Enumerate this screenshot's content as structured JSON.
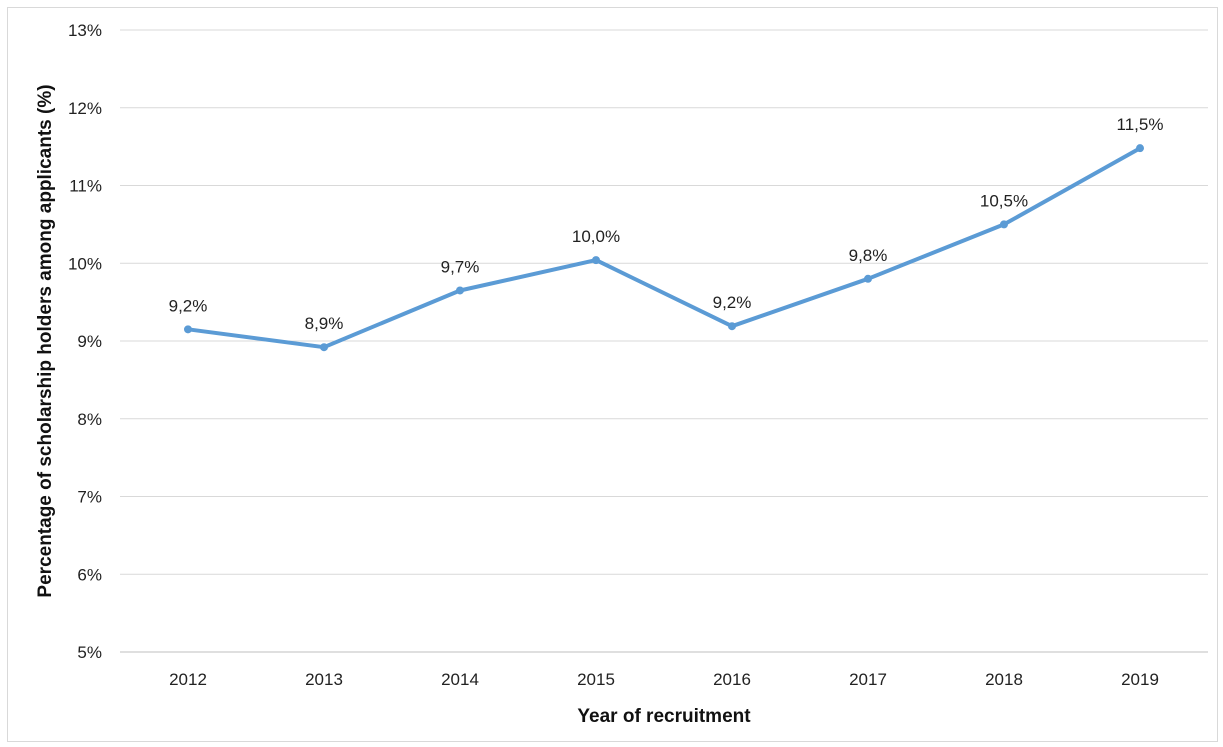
{
  "chart_data": {
    "type": "line",
    "title": "",
    "xlabel": "Year of recruitment",
    "ylabel": "Percentage of scholarship holders among applicants (%)",
    "categories": [
      "2012",
      "2013",
      "2014",
      "2015",
      "2016",
      "2017",
      "2018",
      "2019"
    ],
    "series": [
      {
        "values": [
          9.15,
          8.92,
          9.65,
          10.04,
          9.19,
          9.8,
          10.5,
          11.48
        ],
        "data_labels": [
          "9,2%",
          "8,9%",
          "9,7%",
          "10,0%",
          "9,2%",
          "9,8%",
          "10,5%",
          "11,5%"
        ],
        "color": "#5b9bd5"
      }
    ],
    "ylim": [
      5,
      13
    ],
    "y_ticks": [
      5,
      6,
      7,
      8,
      9,
      10,
      11,
      12,
      13
    ],
    "y_tick_labels": [
      "5%",
      "6%",
      "7%",
      "8%",
      "9%",
      "10%",
      "11%",
      "12%",
      "13%"
    ],
    "grid": true,
    "legend": "none"
  }
}
